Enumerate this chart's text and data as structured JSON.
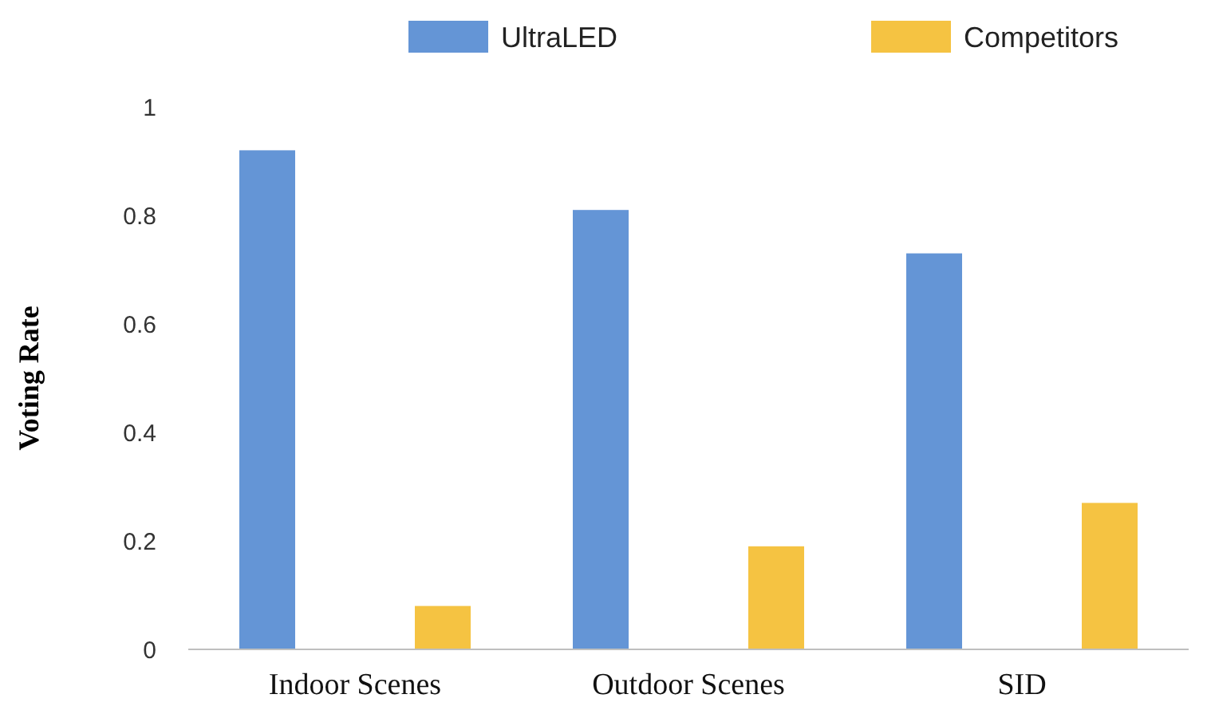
{
  "chart_data": {
    "type": "bar",
    "ylabel": "Voting Rate",
    "categories": [
      "Indoor Scenes",
      "Outdoor Scenes",
      "SID"
    ],
    "series": [
      {
        "name": "UltraLED",
        "color": "#6495d6",
        "values": [
          0.92,
          0.81,
          0.73
        ]
      },
      {
        "name": "Competitors",
        "color": "#f5c342",
        "values": [
          0.08,
          0.19,
          0.27
        ]
      }
    ],
    "ylim": [
      0,
      1
    ],
    "yticks": [
      0,
      0.2,
      0.4,
      0.6,
      0.8,
      1
    ],
    "grid": false,
    "legend": "top"
  }
}
